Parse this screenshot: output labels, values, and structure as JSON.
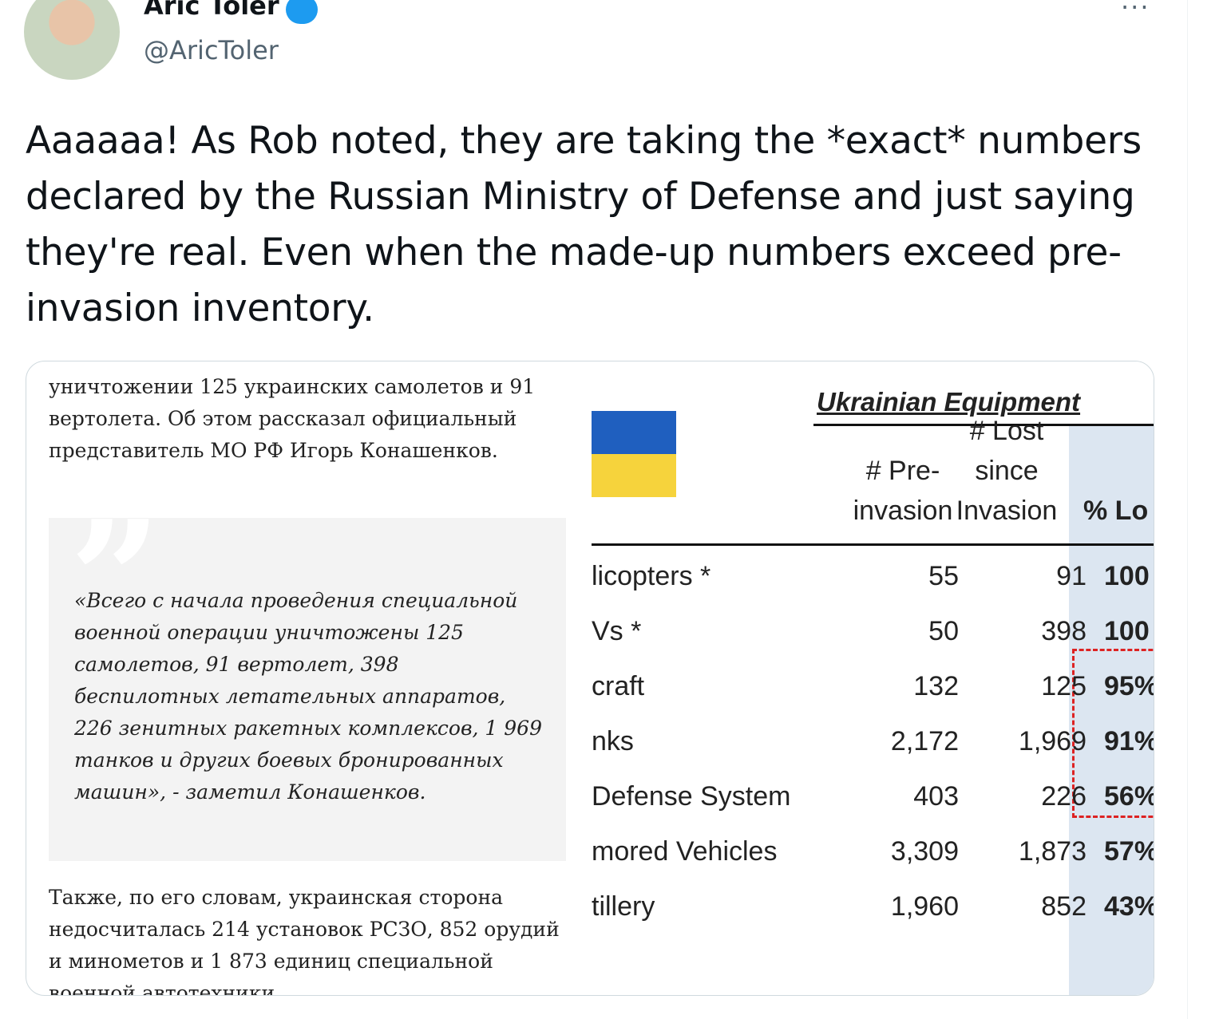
{
  "tweet": {
    "author": "Aric Toler",
    "handle": "@AricToler",
    "text": "Aaaaaa! As Rob noted, they are taking the *exact* numbers declared by the Russian Ministry of Defense and just saying they're real. Even when the made-up numbers exceed pre-invasion inventory."
  },
  "image": {
    "article": {
      "intro": "уничтожении 125 украинских самолетов и 91 вертолета. Об этом рассказал официальный представитель МО РФ Игорь Конашенков.",
      "quote": "«Всего с начала проведения специальной военной операции уничтожены 125 самолетов, 91 вертолет, 398 беспилотных летательных аппаратов, 226 зенитных ракетных комплексов, 1 969 танков и других боевых бронированных машин», - заметил Конашенков.",
      "after": "Также, по его словам, украинская сторона недосчиталась 214 установок РСЗО, 852 орудий и минометов и 1 873 единиц специальной военной автотехники"
    },
    "table": {
      "title": "Ukrainian Equipment",
      "headers": [
        [
          "# Pre-",
          "invasion"
        ],
        [
          "# Lost",
          "since",
          "Invasion"
        ],
        [
          "% Lo"
        ]
      ],
      "rows": [
        [
          "licopters *",
          "55",
          "91",
          "100"
        ],
        [
          "Vs *",
          "50",
          "398",
          "100"
        ],
        [
          "craft",
          "132",
          "125",
          "95%"
        ],
        [
          "nks",
          "2,172",
          "1,969",
          "91%"
        ],
        [
          "Defense System",
          "403",
          "226",
          "56%"
        ],
        [
          "mored Vehicles",
          "3,309",
          "1,873",
          "57%"
        ],
        [
          "tillery",
          "1,960",
          "852",
          "43%"
        ]
      ]
    }
  }
}
